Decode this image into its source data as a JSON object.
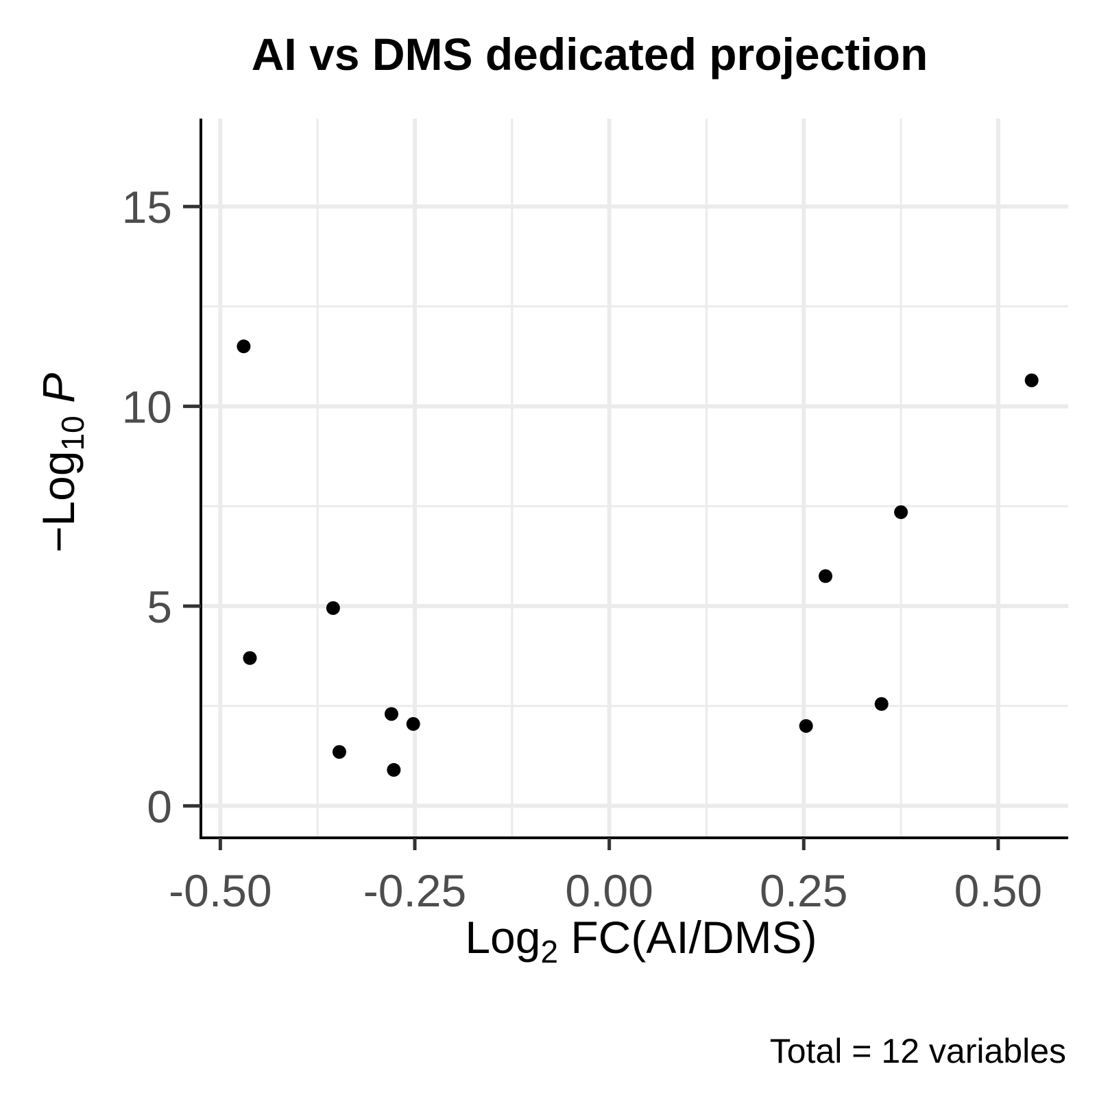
{
  "chart_data": {
    "type": "scatter",
    "title": "AI vs DMS dedicated projection",
    "xlabel": {
      "main": "Log",
      "sub": "2",
      "rest": " FC(AI/DMS)"
    },
    "ylabel": {
      "prefix": "−Log",
      "sub": "10",
      "italic": " P"
    },
    "caption": "Total = 12 variables",
    "xlim": [
      -0.525,
      0.59
    ],
    "ylim": [
      -0.8,
      17.2
    ],
    "x_ticks": [
      -0.5,
      -0.25,
      0.0,
      0.25,
      0.5
    ],
    "x_tick_labels": [
      "-0.50",
      "-0.25",
      "0.00",
      "0.25",
      "0.50"
    ],
    "y_ticks": [
      0,
      5,
      10,
      15
    ],
    "y_tick_labels": [
      "0",
      "5",
      "10",
      "15"
    ],
    "grid": true,
    "legend": "none",
    "point_color": "#000000",
    "points": [
      {
        "x": -0.47,
        "y": 11.5
      },
      {
        "x": -0.462,
        "y": 3.7
      },
      {
        "x": -0.355,
        "y": 4.95
      },
      {
        "x": -0.347,
        "y": 1.35
      },
      {
        "x": -0.28,
        "y": 2.3
      },
      {
        "x": -0.277,
        "y": 0.9
      },
      {
        "x": -0.252,
        "y": 2.05
      },
      {
        "x": 0.253,
        "y": 2.0
      },
      {
        "x": 0.278,
        "y": 5.75
      },
      {
        "x": 0.35,
        "y": 2.55
      },
      {
        "x": 0.375,
        "y": 7.35
      },
      {
        "x": 0.543,
        "y": 10.65
      }
    ]
  }
}
